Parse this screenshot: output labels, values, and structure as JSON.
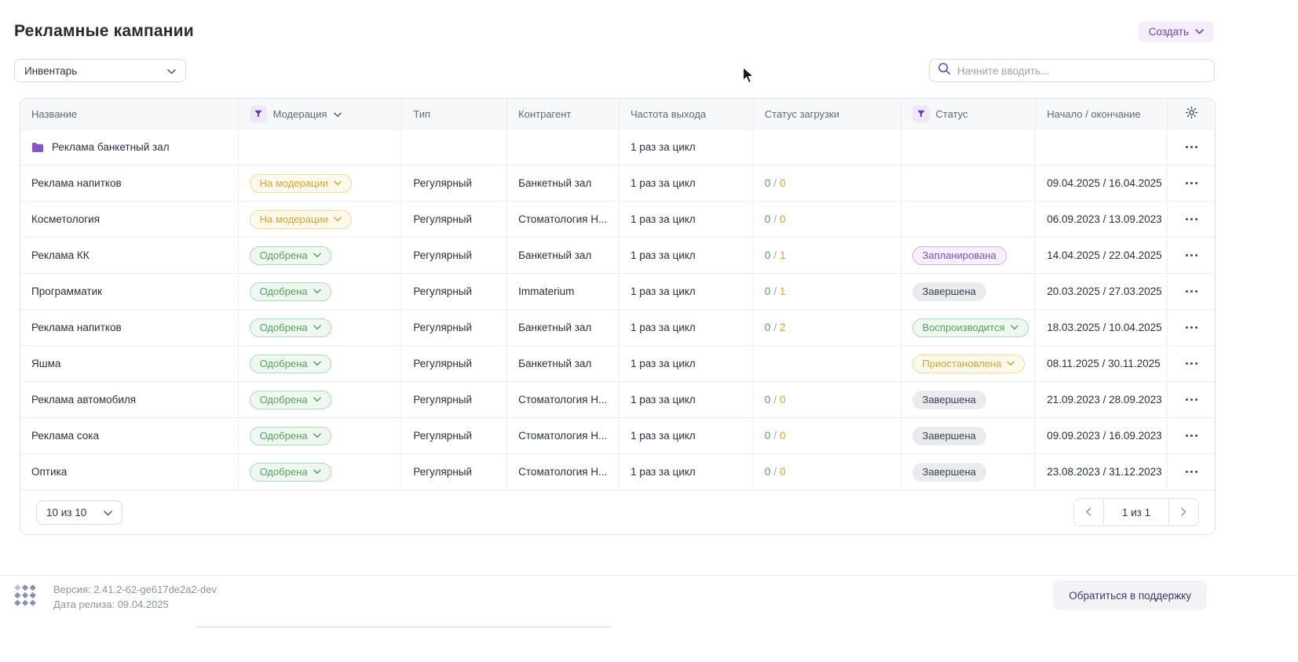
{
  "page": {
    "title": "Рекламные кампании",
    "create_button": "Создать",
    "inventory_filter": "Инвентарь",
    "search_placeholder": "Начните вводить..."
  },
  "colors": {
    "accent_purple": "#6e41bd",
    "badge_yellow": "#dfa32e",
    "badge_green": "#55a05f",
    "badge_purple": "#7a4fc9",
    "badge_grey": "#39424d",
    "load_done_green": "#55a05f",
    "load_total_orange": "#e0a22e"
  },
  "table": {
    "columns": [
      {
        "label": "Название",
        "filter": false,
        "sort": false
      },
      {
        "label": "Модерация",
        "filter": true,
        "sort": true
      },
      {
        "label": "Тип",
        "filter": false,
        "sort": false
      },
      {
        "label": "Контрагент",
        "filter": false,
        "sort": false
      },
      {
        "label": "Частота выхода",
        "filter": false,
        "sort": false
      },
      {
        "label": "Статус загрузки",
        "filter": false,
        "sort": false
      },
      {
        "label": "Статус",
        "filter": true,
        "sort": false
      },
      {
        "label": "Начало / окончание",
        "filter": false,
        "sort": false
      }
    ],
    "settings_icon": "gear-icon",
    "rows": [
      {
        "name": "Реклама банкетный зал",
        "folder": true,
        "moderation": null,
        "type": "",
        "counterparty": "",
        "frequency": "1 раз за цикл",
        "load": null,
        "status": null,
        "dates": ""
      },
      {
        "name": "Реклама напитков",
        "folder": false,
        "moderation": {
          "label": "На модерации",
          "variant": "yellow",
          "chevron": true
        },
        "type": "Регулярный",
        "counterparty": "Банкетный зал",
        "frequency": "1 раз за цикл",
        "load": {
          "done": "0",
          "total": "0"
        },
        "status": null,
        "dates": "09.04.2025 / 16.04.2025"
      },
      {
        "name": "Косметология",
        "folder": false,
        "moderation": {
          "label": "На модерации",
          "variant": "yellow",
          "chevron": true
        },
        "type": "Регулярный",
        "counterparty": "Стоматология Н...",
        "frequency": "1 раз за цикл",
        "load": {
          "done": "0",
          "total": "0"
        },
        "status": null,
        "dates": "06.09.2023 / 13.09.2023"
      },
      {
        "name": "Реклама КК",
        "folder": false,
        "moderation": {
          "label": "Одобрена",
          "variant": "green",
          "chevron": true
        },
        "type": "Регулярный",
        "counterparty": "Банкетный зал",
        "frequency": "1 раз за цикл",
        "load": {
          "done": "0",
          "total": "1"
        },
        "status": {
          "label": "Запланирована",
          "variant": "purple",
          "chevron": false
        },
        "dates": "14.04.2025 / 22.04.2025"
      },
      {
        "name": "Программатик",
        "folder": false,
        "moderation": {
          "label": "Одобрена",
          "variant": "green",
          "chevron": true
        },
        "type": "Регулярный",
        "counterparty": "Immaterium",
        "frequency": "1 раз за цикл",
        "load": {
          "done": "0",
          "total": "1"
        },
        "status": {
          "label": "Завершена",
          "variant": "grey",
          "chevron": false
        },
        "dates": "20.03.2025 / 27.03.2025"
      },
      {
        "name": "Реклама напитков",
        "folder": false,
        "moderation": {
          "label": "Одобрена",
          "variant": "green",
          "chevron": true
        },
        "type": "Регулярный",
        "counterparty": "Банкетный зал",
        "frequency": "1 раз за цикл",
        "load": {
          "done": "0",
          "total": "2"
        },
        "status": {
          "label": "Воспроизводится",
          "variant": "green",
          "chevron": true
        },
        "dates": "18.03.2025 / 10.04.2025"
      },
      {
        "name": "Яшма",
        "folder": false,
        "moderation": {
          "label": "Одобрена",
          "variant": "green",
          "chevron": true
        },
        "type": "Регулярный",
        "counterparty": "Банкетный зал",
        "frequency": "1 раз за цикл",
        "load": null,
        "status": {
          "label": "Приостановлена",
          "variant": "yellow",
          "chevron": true
        },
        "dates": "08.11.2025 / 30.11.2025"
      },
      {
        "name": "Реклама автомобиля",
        "folder": false,
        "moderation": {
          "label": "Одобрена",
          "variant": "green",
          "chevron": true
        },
        "type": "Регулярный",
        "counterparty": "Стоматология Н...",
        "frequency": "1 раз за цикл",
        "load": {
          "done": "0",
          "total": "0"
        },
        "status": {
          "label": "Завершена",
          "variant": "grey",
          "chevron": false
        },
        "dates": "21.09.2023 / 28.09.2023"
      },
      {
        "name": "Реклама сока",
        "folder": false,
        "moderation": {
          "label": "Одобрена",
          "variant": "green",
          "chevron": true
        },
        "type": "Регулярный",
        "counterparty": "Стоматология Н...",
        "frequency": "1 раз за цикл",
        "load": {
          "done": "0",
          "total": "0"
        },
        "status": {
          "label": "Завершена",
          "variant": "grey",
          "chevron": false
        },
        "dates": "09.09.2023 / 16.09.2023"
      },
      {
        "name": "Оптика",
        "folder": false,
        "moderation": {
          "label": "Одобрена",
          "variant": "green",
          "chevron": true
        },
        "type": "Регулярный",
        "counterparty": "Стоматология Н...",
        "frequency": "1 раз за цикл",
        "load": {
          "done": "0",
          "total": "0"
        },
        "status": {
          "label": "Завершена",
          "variant": "grey",
          "chevron": false
        },
        "dates": "23.08.2023 / 31.12.2023"
      }
    ],
    "load_separator": "/"
  },
  "pagination": {
    "page_size": "10 из 10",
    "prev_icon": "chevron-left",
    "page_indicator": "1 из 1",
    "next_icon": "chevron-right"
  },
  "footer": {
    "version": "Версия: 2.41.2-62-ge617de2a2-dev",
    "release_date": "Дата релиза: 09.04.2025",
    "support_button": "Обратиться в поддержку"
  }
}
